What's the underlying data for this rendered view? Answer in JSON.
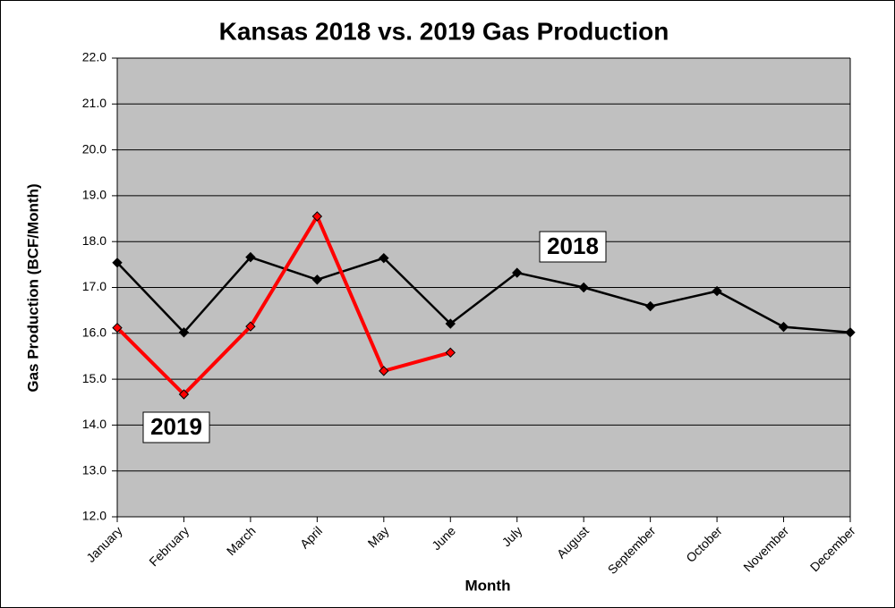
{
  "chart_data": {
    "type": "line",
    "title": "Kansas 2018 vs. 2019 Gas Production",
    "x_label": "Month",
    "y_label": "Gas Production (BCF/Month)",
    "categories": [
      "January",
      "February",
      "March",
      "April",
      "May",
      "June",
      "July",
      "August",
      "September",
      "October",
      "November",
      "December"
    ],
    "series": [
      {
        "name": "2018",
        "color": "#000000",
        "values": [
          17.54,
          16.02,
          17.66,
          17.17,
          17.64,
          16.21,
          17.32,
          17.0,
          16.59,
          16.92,
          16.14,
          16.02
        ]
      },
      {
        "name": "2019",
        "color": "#ff0000",
        "values": [
          16.12,
          14.67,
          16.15,
          18.55,
          15.18,
          15.58,
          null,
          null,
          null,
          null,
          null,
          null
        ]
      }
    ],
    "ylim": [
      12,
      22
    ],
    "yticks": [
      {
        "value": 12,
        "label": "12.0"
      },
      {
        "value": 13,
        "label": "13.0"
      },
      {
        "value": 14,
        "label": "14.0"
      },
      {
        "value": 15,
        "label": "15.0"
      },
      {
        "value": 16,
        "label": "16.0"
      },
      {
        "value": 17,
        "label": "17.0"
      },
      {
        "value": 18,
        "label": "18.0"
      },
      {
        "value": 19,
        "label": "19.0"
      },
      {
        "value": 20,
        "label": "20.0"
      },
      {
        "value": 21,
        "label": "21.0"
      },
      {
        "value": 22,
        "label": "22.0"
      }
    ],
    "grid": true
  }
}
